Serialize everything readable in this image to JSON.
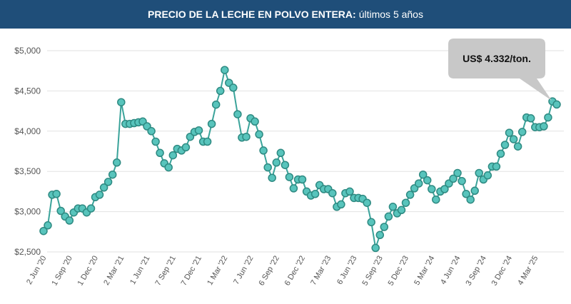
{
  "header": {
    "title_bold": "PRECIO DE LA LECHE EN POLVO ENTERA:",
    "title_rest": "últimos 5 años"
  },
  "colors": {
    "header_bg": "#1f4e79",
    "line": "#3aa39a",
    "marker_fill": "#58c4bc",
    "marker_stroke": "#2e8a82",
    "grid": "#e2e2e2",
    "callout_bg": "#c8c8c8"
  },
  "callout": {
    "text": "US$ 4.332/ton."
  },
  "chart_data": {
    "type": "line",
    "title": "PRECIO DE LA LECHE EN POLVO ENTERA: últimos 5 años",
    "ylim": [
      2500,
      5000
    ],
    "yticks": [
      2500,
      3000,
      3500,
      4000,
      4500,
      5000
    ],
    "ytick_labels": [
      "$2,500",
      "$3,000",
      "$3,500",
      "$4,000",
      "$4,500",
      "$5,000"
    ],
    "grid": true,
    "xtick_labels": [
      "2 Jun '20",
      "1 Sep '20",
      "1 Dec '20",
      "2 Mar '21",
      "1 Jun '21",
      "7 Sep '21",
      "7 Dec '21",
      "1 Mar '22",
      "7 Jun '22",
      "6 Sep '22",
      "6 Dec '22",
      "7 Mar '23",
      "6 Jun '23",
      "5 Sep '23",
      "5 Dec '23",
      "5 Mar '24",
      "4 Jun '24",
      "3 Sep '24",
      "3 Dec '24",
      "4 Mar '25"
    ],
    "xtick_point_index": [
      0,
      6,
      12,
      18,
      24,
      30,
      36,
      42,
      48,
      54,
      60,
      66,
      72,
      78,
      84,
      90,
      96,
      102,
      108,
      114
    ],
    "series": [
      {
        "values": [
          2760,
          2830,
          3210,
          3220,
          3010,
          2940,
          2890,
          2990,
          3040,
          3040,
          2990,
          3040,
          3180,
          3210,
          3300,
          3370,
          3460,
          3610,
          4360,
          4090,
          4090,
          4100,
          4110,
          4120,
          4060,
          4000,
          3870,
          3730,
          3600,
          3550,
          3700,
          3780,
          3760,
          3800,
          3930,
          3990,
          4010,
          3870,
          3870,
          4090,
          4330,
          4500,
          4760,
          4600,
          4540,
          4210,
          3920,
          3930,
          4160,
          4120,
          3960,
          3760,
          3550,
          3420,
          3610,
          3730,
          3580,
          3430,
          3290,
          3400,
          3400,
          3250,
          3200,
          3220,
          3330,
          3280,
          3280,
          3230,
          3060,
          3090,
          3230,
          3250,
          3170,
          3170,
          3160,
          3110,
          2870,
          2550,
          2710,
          2810,
          2940,
          3060,
          2980,
          3020,
          3110,
          3210,
          3290,
          3350,
          3460,
          3390,
          3280,
          3150,
          3250,
          3280,
          3350,
          3410,
          3480,
          3380,
          3220,
          3150,
          3260,
          3480,
          3400,
          3450,
          3560,
          3560,
          3720,
          3830,
          3980,
          3900,
          3810,
          3990,
          4170,
          4160,
          4050,
          4050,
          4060,
          4170,
          4370,
          4332
        ]
      }
    ]
  }
}
